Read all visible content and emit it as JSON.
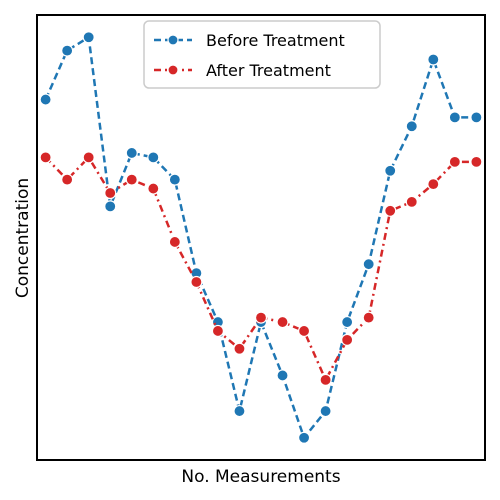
{
  "chart_data": {
    "type": "line",
    "title": "",
    "xlabel": "No. Measurements",
    "ylabel": "Concentration",
    "x": [
      0,
      1,
      2,
      3,
      4,
      5,
      6,
      7,
      8,
      9,
      10,
      11,
      12,
      13,
      14,
      15,
      16,
      17,
      18,
      19,
      20
    ],
    "xlim": [
      -0.4,
      20.4
    ],
    "ylim": [
      0.0,
      10.0
    ],
    "grid": false,
    "legend_position": "top-center",
    "series": [
      {
        "name": "Before Treatment",
        "color": "#1f77b4",
        "linestyle": "dashed",
        "values": [
          8.1,
          9.2,
          9.5,
          5.7,
          6.9,
          6.8,
          6.3,
          4.2,
          3.1,
          1.1,
          3.1,
          1.9,
          0.5,
          1.1,
          3.1,
          4.4,
          6.5,
          7.5,
          9.0,
          7.7,
          7.7
        ]
      },
      {
        "name": "After Treatment",
        "color": "#d62728",
        "linestyle": "dashdot",
        "values": [
          6.8,
          6.3,
          6.8,
          6.0,
          6.3,
          6.1,
          4.9,
          4.0,
          2.9,
          2.5,
          3.2,
          3.1,
          2.9,
          1.8,
          2.7,
          3.2,
          5.6,
          5.8,
          6.2,
          6.7,
          6.7
        ]
      }
    ]
  }
}
